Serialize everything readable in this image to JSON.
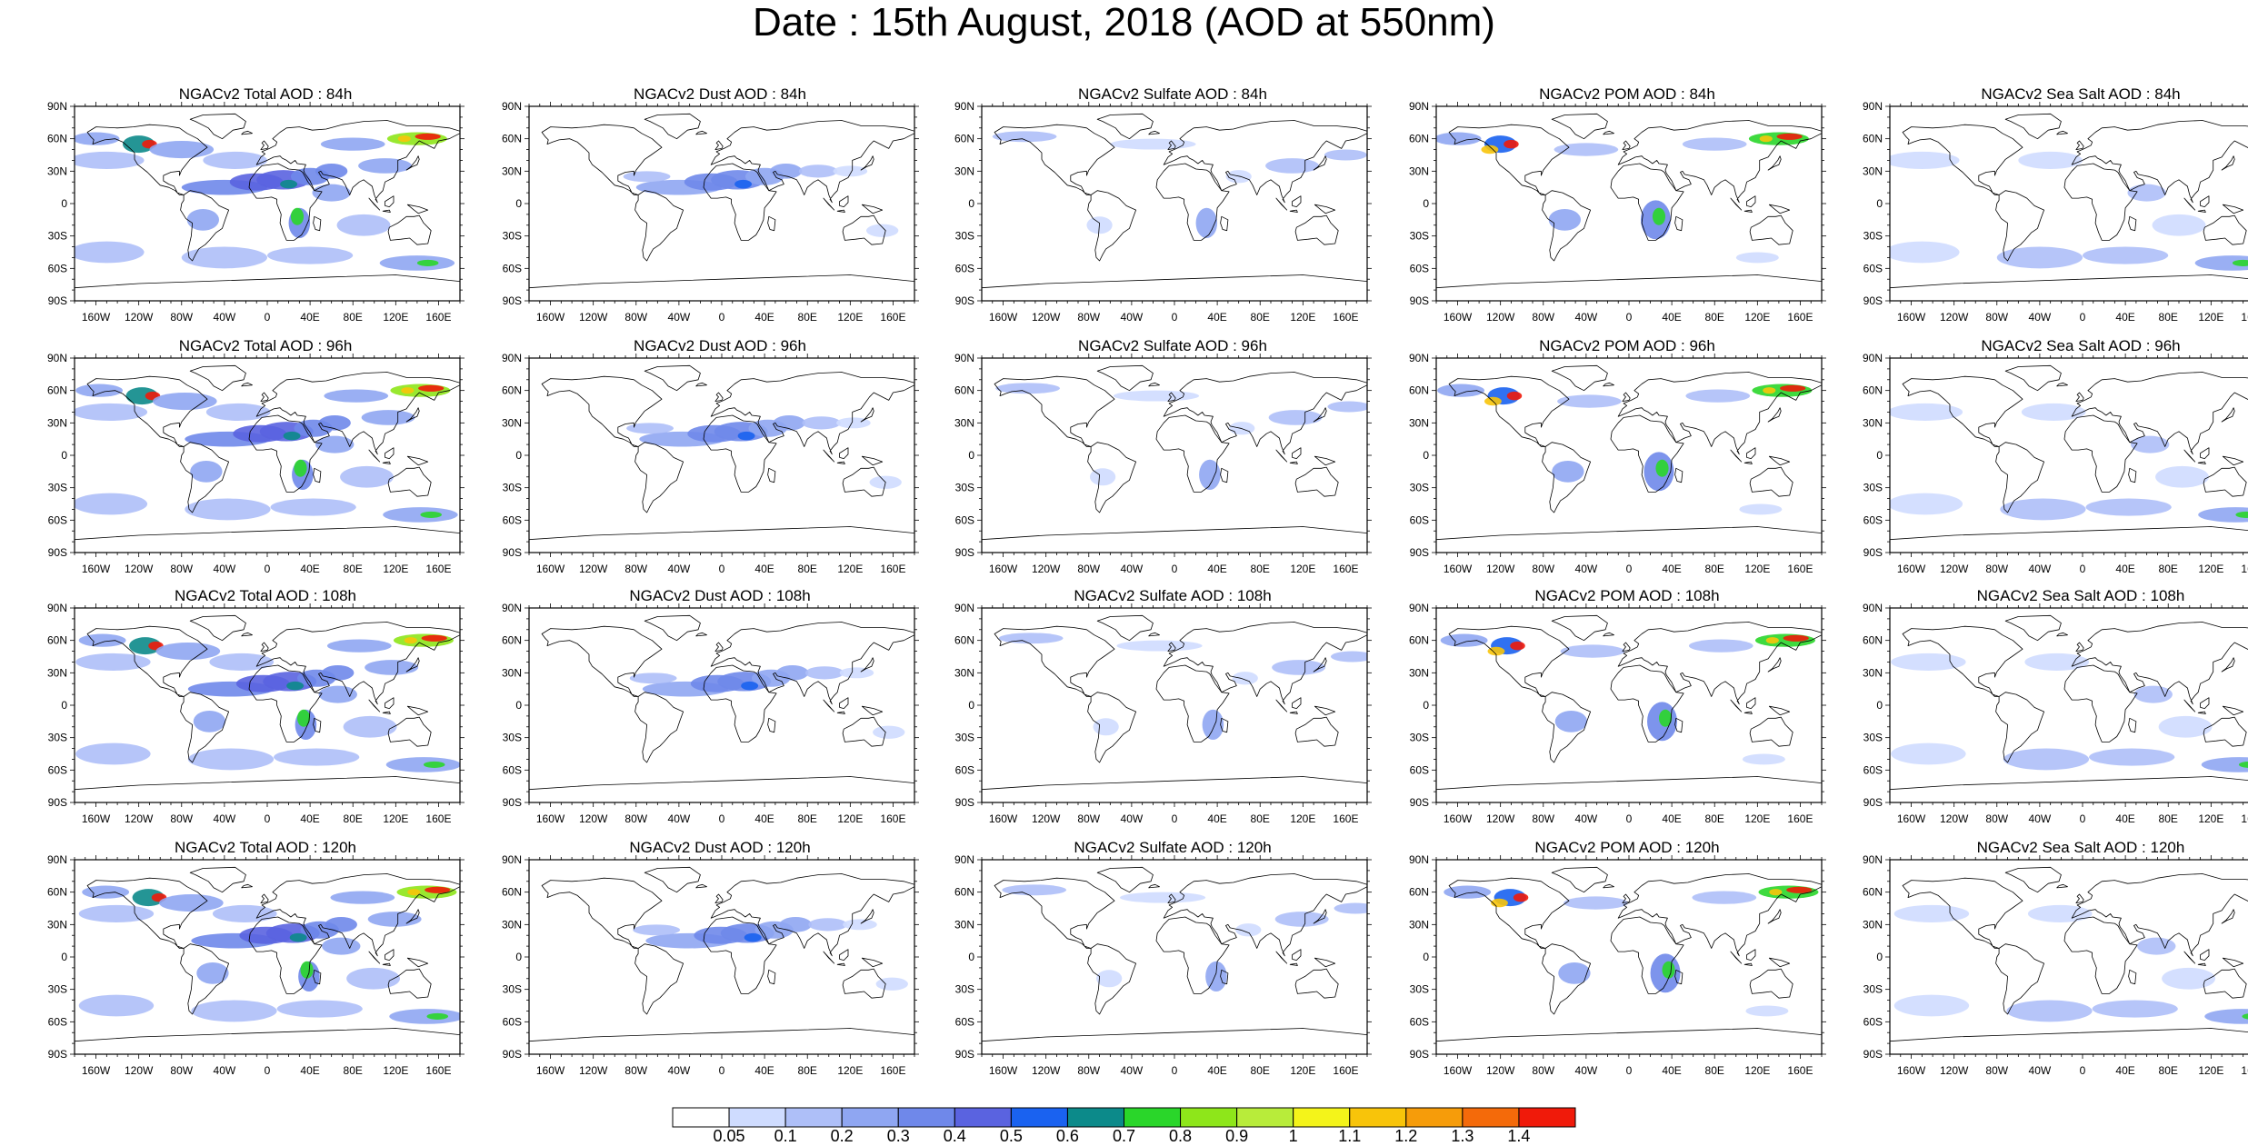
{
  "title": "Date : 15th August, 2018 (AOD at 550nm)",
  "lat_ticks": [
    "90N",
    "60N",
    "30N",
    "0",
    "30S",
    "60S",
    "90S"
  ],
  "lon_ticks": [
    "160W",
    "120W",
    "80W",
    "40W",
    "0",
    "40E",
    "80E",
    "120E",
    "160E"
  ],
  "lat_values": [
    90,
    60,
    30,
    0,
    -30,
    -60,
    -90
  ],
  "lon_values": [
    -160,
    -120,
    -80,
    -40,
    0,
    40,
    80,
    120,
    160
  ],
  "colorbar": {
    "labels": [
      "0.05",
      "0.1",
      "0.2",
      "0.3",
      "0.4",
      "0.5",
      "0.6",
      "0.7",
      "0.8",
      "0.9",
      "1",
      "1.1",
      "1.2",
      "1.3",
      "1.4"
    ],
    "colors": [
      "#ffffff",
      "#cfdcff",
      "#aebff8",
      "#8fa6f2",
      "#6f88ea",
      "#5a63e0",
      "#1a62f0",
      "#0c8a8a",
      "#2ad62a",
      "#8ee61a",
      "#b8ec3a",
      "#f4f41a",
      "#f8c40a",
      "#f69c0a",
      "#f46a0a",
      "#f01a0a"
    ]
  },
  "panels": [
    [
      {
        "title": "NGACv2 Total AOD : 84h",
        "kind": "total"
      },
      {
        "title": "NGACv2 Dust AOD : 84h",
        "kind": "dust"
      },
      {
        "title": "NGACv2 Sulfate AOD : 84h",
        "kind": "sulfate"
      },
      {
        "title": "NGACv2 POM AOD : 84h",
        "kind": "pom"
      },
      {
        "title": "NGACv2 Sea Salt AOD : 84h",
        "kind": "seasalt"
      }
    ],
    [
      {
        "title": "NGACv2 Total AOD : 96h",
        "kind": "total"
      },
      {
        "title": "NGACv2 Dust AOD : 96h",
        "kind": "dust"
      },
      {
        "title": "NGACv2 Sulfate AOD : 96h",
        "kind": "sulfate"
      },
      {
        "title": "NGACv2 POM AOD : 96h",
        "kind": "pom"
      },
      {
        "title": "NGACv2 Sea Salt AOD : 96h",
        "kind": "seasalt"
      }
    ],
    [
      {
        "title": "NGACv2 Total AOD : 108h",
        "kind": "total"
      },
      {
        "title": "NGACv2 Dust AOD : 108h",
        "kind": "dust"
      },
      {
        "title": "NGACv2 Sulfate AOD : 108h",
        "kind": "sulfate"
      },
      {
        "title": "NGACv2 POM AOD : 108h",
        "kind": "pom"
      },
      {
        "title": "NGACv2 Sea Salt AOD : 108h",
        "kind": "seasalt"
      }
    ],
    [
      {
        "title": "NGACv2 Total AOD : 120h",
        "kind": "total"
      },
      {
        "title": "NGACv2 Dust AOD : 120h",
        "kind": "dust"
      },
      {
        "title": "NGACv2 Sulfate AOD : 120h",
        "kind": "sulfate"
      },
      {
        "title": "NGACv2 POM AOD : 120h",
        "kind": "pom"
      },
      {
        "title": "NGACv2 Sea Salt  AOD : 120h",
        "kind": "seasalt"
      }
    ]
  ]
}
